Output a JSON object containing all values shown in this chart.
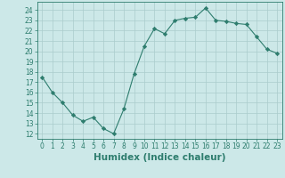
{
  "x": [
    0,
    1,
    2,
    3,
    4,
    5,
    6,
    7,
    8,
    9,
    10,
    11,
    12,
    13,
    14,
    15,
    16,
    17,
    18,
    19,
    20,
    21,
    22,
    23
  ],
  "y": [
    17.5,
    16.0,
    15.0,
    13.8,
    13.2,
    13.6,
    12.5,
    12.0,
    14.4,
    17.8,
    20.5,
    22.2,
    21.7,
    23.0,
    23.2,
    23.3,
    24.2,
    23.0,
    22.9,
    22.7,
    22.6,
    21.4,
    20.2,
    19.8
  ],
  "xlim": [
    -0.5,
    23.5
  ],
  "ylim": [
    11.5,
    24.8
  ],
  "yticks": [
    12,
    13,
    14,
    15,
    16,
    17,
    18,
    19,
    20,
    21,
    22,
    23,
    24
  ],
  "xticks": [
    0,
    1,
    2,
    3,
    4,
    5,
    6,
    7,
    8,
    9,
    10,
    11,
    12,
    13,
    14,
    15,
    16,
    17,
    18,
    19,
    20,
    21,
    22,
    23
  ],
  "xlabel": "Humidex (Indice chaleur)",
  "line_color": "#2e7d6e",
  "marker": "D",
  "marker_size": 2.2,
  "bg_color": "#cce8e8",
  "grid_color": "#aacccc",
  "tick_label_fontsize": 5.5,
  "xlabel_fontsize": 7.5
}
